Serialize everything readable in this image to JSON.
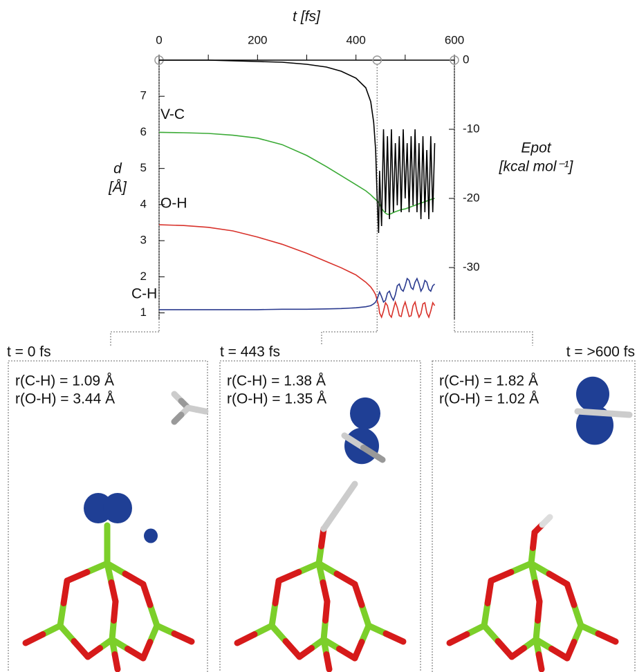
{
  "chart_data": {
    "type": "line",
    "x_label": "t [fs]",
    "y_label": [
      "d",
      "[Å]"
    ],
    "y2_label": [
      "Epot",
      "[kcal mol⁻¹]"
    ],
    "x": [
      0,
      50,
      100,
      150,
      200,
      250,
      300,
      340,
      370,
      400,
      420,
      430,
      436,
      440,
      443,
      446,
      448,
      452,
      456,
      460,
      464,
      468,
      472,
      476,
      480,
      484,
      488,
      492,
      496,
      500,
      504,
      508,
      512,
      516,
      520,
      524,
      528,
      532,
      536,
      540,
      544,
      548,
      552,
      556,
      560
    ],
    "series": [
      {
        "name": "V-C",
        "color": "#3aaa35",
        "values": [
          6.0,
          5.99,
          5.97,
          5.92,
          5.84,
          5.66,
          5.36,
          5.05,
          4.8,
          4.55,
          4.38,
          4.27,
          4.19,
          4.14,
          4.1,
          4.06,
          4.0,
          3.9,
          3.82,
          3.76,
          3.73,
          3.73,
          3.75,
          3.78,
          3.8,
          3.82,
          3.84,
          3.86,
          3.87,
          3.88,
          3.9,
          3.92,
          3.94,
          3.96,
          3.98,
          4.0,
          4.02,
          4.04,
          4.06,
          4.08,
          4.1,
          4.12,
          4.14,
          4.16,
          4.17
        ]
      },
      {
        "name": "O-H",
        "color": "#d8312a",
        "values": [
          3.44,
          3.42,
          3.37,
          3.27,
          3.1,
          2.9,
          2.65,
          2.42,
          2.25,
          2.05,
          1.85,
          1.72,
          1.6,
          1.5,
          1.35,
          1.2,
          1.0,
          0.88,
          1.05,
          1.28,
          1.2,
          0.95,
          0.88,
          1.1,
          1.3,
          1.15,
          0.92,
          0.9,
          1.15,
          1.3,
          1.1,
          0.9,
          0.92,
          1.2,
          1.3,
          1.05,
          0.88,
          0.98,
          1.25,
          1.28,
          1.0,
          0.88,
          1.05,
          1.28,
          1.2
        ]
      },
      {
        "name": "C-H",
        "color": "#2a3a8f",
        "values": [
          1.09,
          1.09,
          1.09,
          1.09,
          1.09,
          1.1,
          1.1,
          1.11,
          1.12,
          1.14,
          1.17,
          1.2,
          1.25,
          1.3,
          1.38,
          1.5,
          1.58,
          1.45,
          1.3,
          1.35,
          1.55,
          1.6,
          1.45,
          1.35,
          1.5,
          1.75,
          1.8,
          1.65,
          1.6,
          1.75,
          1.95,
          1.9,
          1.7,
          1.65,
          1.85,
          1.95,
          1.8,
          1.6,
          1.7,
          1.9,
          1.85,
          1.65,
          1.6,
          1.75,
          1.8
        ]
      },
      {
        "color": "#000000",
        "axis": "y2",
        "values": [
          0,
          0,
          0,
          -0.1,
          -0.2,
          -0.3,
          -0.6,
          -1.0,
          -1.6,
          -2.6,
          -4,
          -6,
          -9,
          -13,
          -20,
          -25,
          -16,
          -24,
          -10,
          -22,
          -11,
          -23,
          -10,
          -22,
          -12,
          -21,
          -11,
          -22,
          -10,
          -20,
          -12,
          -22,
          -11,
          -21,
          -10,
          -22,
          -12,
          -23,
          -11,
          -22,
          -13,
          -23,
          -11,
          -22,
          -12
        ]
      }
    ],
    "xlim": [
      0,
      600
    ],
    "xticks": [
      0,
      200,
      400,
      600
    ],
    "xminorticks": [
      100,
      300,
      500
    ],
    "ylim": [
      0.8,
      8
    ],
    "yticks": [
      1,
      2,
      3,
      4,
      5,
      6,
      7
    ],
    "y2lim": [
      -37.6,
      0
    ],
    "y2ticks": [
      0,
      -10,
      -20,
      -30
    ],
    "marked_times": [
      0,
      443,
      600
    ]
  },
  "panels": [
    {
      "time": "t = 0 fs",
      "r_ch": "r(C-H) = 1.09 Å",
      "r_oh": "r(O-H) = 3.44 Å"
    },
    {
      "time": "t = 443 fs",
      "r_ch": "r(C-H) = 1.38 Å",
      "r_oh": "r(O-H) = 1.35 Å"
    },
    {
      "time": "t = >600 fs",
      "r_ch": "r(C-H) = 1.82 Å",
      "r_oh": "r(O-H) = 1.02 Å"
    }
  ]
}
